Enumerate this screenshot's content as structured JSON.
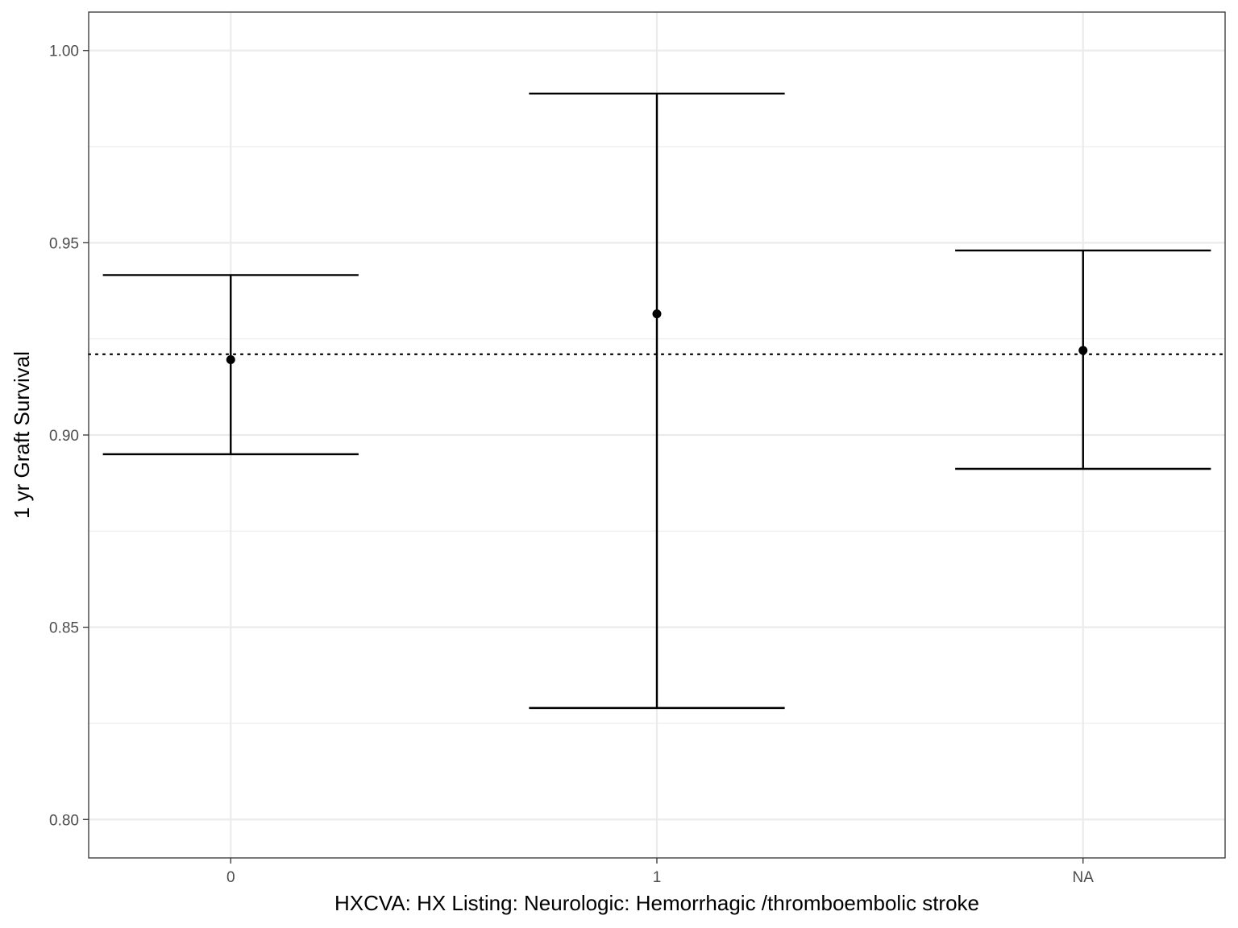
{
  "chart_data": {
    "type": "errorbar",
    "title": "",
    "xlabel": "HXCVA: HX Listing: Neurologic: Hemorrhagic /thromboembolic stroke",
    "ylabel": "1 yr Graft Survival",
    "categories": [
      "0",
      "1",
      "NA"
    ],
    "series": [
      {
        "estimate": [
          0.9196,
          0.9315,
          0.922
        ],
        "lower": [
          0.895,
          0.829,
          0.8912
        ],
        "upper": [
          0.9416,
          0.9888,
          0.948
        ]
      }
    ],
    "reference_line": {
      "y": 0.921,
      "style": "dotted"
    },
    "ylim": [
      0.79,
      1.01
    ],
    "yticks": [
      0.8,
      0.85,
      0.9,
      0.95,
      1.0
    ],
    "ytick_labels": [
      "0.80",
      "0.85",
      "0.90",
      "0.95",
      "1.00"
    ],
    "grid": true,
    "legend": "none",
    "colors": {
      "marks": "#000000",
      "grid": "#ebebeb",
      "panel_border": "#333333",
      "tick_text": "#4d4d4d"
    }
  }
}
